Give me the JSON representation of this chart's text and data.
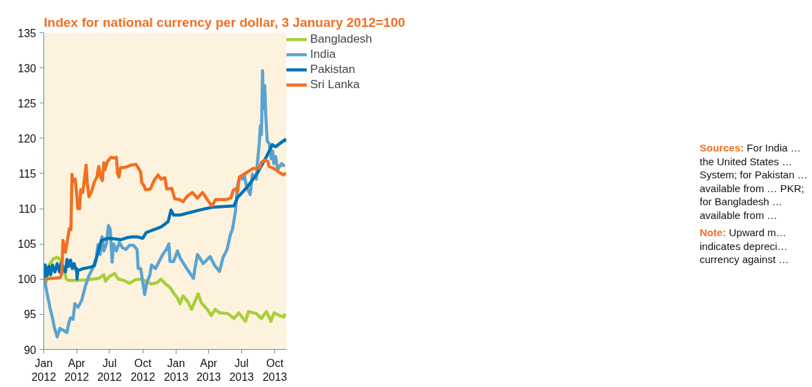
{
  "chart_data": {
    "type": "line",
    "title": "Index for national currency per dollar, 3 January  2012=100",
    "xlim": [
      "2012-01-01",
      "2013-11-02"
    ],
    "xticks": [
      {
        "value": "2012-01-01",
        "label": "Jan\n2012"
      },
      {
        "value": "2012-04-01",
        "label": "Apr\n2012"
      },
      {
        "value": "2012-07-01",
        "label": "Jul\n2012"
      },
      {
        "value": "2012-10-01",
        "label": "Oct\n2012"
      },
      {
        "value": "2013-01-01",
        "label": "Jan\n2013"
      },
      {
        "value": "2013-04-01",
        "label": "Apr\n2013"
      },
      {
        "value": "2013-07-01",
        "label": "Jul\n2013"
      },
      {
        "value": "2013-10-01",
        "label": "Oct\n2013"
      }
    ],
    "ylim": [
      90,
      135
    ],
    "yticks": [
      90,
      95,
      100,
      105,
      110,
      115,
      120,
      125,
      130,
      135
    ],
    "grid": false,
    "legend": "right",
    "marker": "none",
    "line_style": "solid",
    "annotations": [
      "Sources: For India … the United States … System; for Pakistan … available from … PKR; for Bangladesh … available from …",
      "Note: Upward m… indicates depreci… currency against …"
    ],
    "series": [
      {
        "name": "Bangladesh",
        "color": "#a8cf38",
        "x": [
          "2012-01-03",
          "2012-01-08",
          "2012-01-12",
          "2012-01-18",
          "2012-01-28",
          "2012-02-08",
          "2012-02-18",
          "2012-02-25",
          "2012-03-03",
          "2012-03-10",
          "2012-04-01",
          "2012-05-01",
          "2012-06-01",
          "2012-06-15",
          "2012-06-20",
          "2012-07-01",
          "2012-07-15",
          "2012-07-25",
          "2012-08-10",
          "2012-08-25",
          "2012-09-10",
          "2012-09-25",
          "2012-10-10",
          "2012-10-25",
          "2012-11-10",
          "2012-11-20",
          "2012-12-01",
          "2012-12-15",
          "2012-12-28",
          "2013-01-05",
          "2013-01-12",
          "2013-01-20",
          "2013-02-02",
          "2013-02-13",
          "2013-03-03",
          "2013-03-12",
          "2013-03-30",
          "2013-04-08",
          "2013-04-19",
          "2013-05-02",
          "2013-05-24",
          "2013-06-10",
          "2013-06-23",
          "2013-07-12",
          "2013-07-20",
          "2013-08-11",
          "2013-08-25",
          "2013-09-08",
          "2013-09-20",
          "2013-09-29",
          "2013-10-15",
          "2013-10-26",
          "2013-10-29"
        ],
        "values": [
          100,
          99.6,
          101,
          102.2,
          102.9,
          103.1,
          102.6,
          101.5,
          100,
          99.8,
          99.8,
          99.9,
          100.1,
          100.6,
          99.7,
          100.4,
          100.8,
          100,
          99.8,
          99.4,
          99.9,
          100,
          99.7,
          99.3,
          99.5,
          100,
          99.4,
          98.8,
          97.8,
          97.3,
          96.5,
          97.6,
          96.8,
          95.7,
          97.9,
          96.6,
          95.6,
          94.8,
          95.7,
          95.2,
          95.1,
          94.4,
          95.2,
          94,
          95.4,
          95.1,
          94.4,
          95.4,
          94,
          95.2,
          94.8,
          94.6,
          95.1
        ]
      },
      {
        "name": "India",
        "color": "#5aa3d0",
        "x": [
          "2012-01-03",
          "2012-01-10",
          "2012-01-20",
          "2012-01-25",
          "2012-01-30",
          "2012-02-07",
          "2012-02-15",
          "2012-02-25",
          "2012-03-05",
          "2012-03-10",
          "2012-03-15",
          "2012-03-22",
          "2012-03-27",
          "2012-04-05",
          "2012-04-15",
          "2012-04-25",
          "2012-05-05",
          "2012-05-15",
          "2012-05-25",
          "2012-05-30",
          "2012-06-05",
          "2012-06-10",
          "2012-06-15",
          "2012-06-22",
          "2012-06-28",
          "2012-07-03",
          "2012-07-08",
          "2012-07-12",
          "2012-07-20",
          "2012-07-28",
          "2012-08-05",
          "2012-08-15",
          "2012-08-25",
          "2012-09-05",
          "2012-09-15",
          "2012-09-18",
          "2012-09-25",
          "2012-10-01",
          "2012-10-06",
          "2012-10-12",
          "2012-10-20",
          "2012-10-25",
          "2012-11-05",
          "2012-11-15",
          "2012-11-25",
          "2012-12-05",
          "2012-12-12",
          "2012-12-15",
          "2012-12-25",
          "2013-01-05",
          "2013-01-12",
          "2013-01-28",
          "2013-02-18",
          "2013-02-22",
          "2013-03-01",
          "2013-03-17",
          "2013-04-05",
          "2013-04-18",
          "2013-05-01",
          "2013-05-11",
          "2013-05-22",
          "2013-05-31",
          "2013-06-06",
          "2013-06-14",
          "2013-06-20",
          "2013-06-26",
          "2013-07-04",
          "2013-07-08",
          "2013-07-15",
          "2013-07-25",
          "2013-07-31",
          "2013-08-11",
          "2013-08-13",
          "2013-08-19",
          "2013-08-22",
          "2013-08-25",
          "2013-08-28",
          "2013-08-30",
          "2013-09-03",
          "2013-09-06",
          "2013-09-10",
          "2013-09-16",
          "2013-09-21",
          "2013-09-25",
          "2013-09-28",
          "2013-10-03",
          "2013-10-09",
          "2013-10-20",
          "2013-10-28"
        ],
        "values": [
          100,
          98,
          95.5,
          94.5,
          93.2,
          91.8,
          93,
          92.7,
          92.4,
          93.7,
          94.5,
          94.3,
          96.5,
          96,
          97,
          99,
          100.5,
          101.5,
          103,
          104.9,
          103.5,
          106,
          104,
          105,
          107.6,
          107,
          102.4,
          105,
          104,
          105.2,
          104.5,
          104.2,
          104.8,
          104.8,
          104.2,
          101.5,
          101.5,
          99.5,
          97.8,
          99.5,
          100.5,
          102,
          101.5,
          102.5,
          103.5,
          104.2,
          105,
          102.5,
          102.5,
          104,
          103,
          101.7,
          100.1,
          101.5,
          103.5,
          102.2,
          103.2,
          101.9,
          101.1,
          103.1,
          104.2,
          106.3,
          107.1,
          109.6,
          113.4,
          114.5,
          114.2,
          114.9,
          113.1,
          112,
          114.9,
          114.2,
          116,
          119.3,
          121.8,
          120.5,
          129.6,
          124.2,
          127.5,
          123.2,
          119.6,
          119.2,
          117.1,
          118.2,
          116.4,
          117.4,
          115.6,
          116.4,
          116
        ]
      },
      {
        "name": "Pakistan",
        "color": "#0072b5",
        "x": [
          "2012-01-03",
          "2012-01-05",
          "2012-01-10",
          "2012-01-15",
          "2012-01-20",
          "2012-01-25",
          "2012-02-01",
          "2012-02-07",
          "2012-02-14",
          "2012-02-18",
          "2012-02-25",
          "2012-03-01",
          "2012-03-05",
          "2012-03-10",
          "2012-03-15",
          "2012-03-20",
          "2012-03-25",
          "2012-03-30",
          "2012-04-01",
          "2012-04-02",
          "2012-04-04",
          "2012-04-20",
          "2012-05-10",
          "2012-05-20",
          "2012-06-08",
          "2012-06-20",
          "2012-07-01",
          "2012-08-01",
          "2012-08-20",
          "2012-09-01",
          "2012-09-15",
          "2012-10-01",
          "2012-10-10",
          "2012-10-20",
          "2012-11-05",
          "2012-11-20",
          "2012-12-01",
          "2012-12-10",
          "2012-12-18",
          "2012-12-25",
          "2013-01-12",
          "2013-03-06",
          "2013-04-10",
          "2013-06-10",
          "2013-06-20",
          "2013-07-17",
          "2013-08-12",
          "2013-09-08",
          "2013-09-24",
          "2013-10-03",
          "2013-10-29",
          "2013-10-31"
        ],
        "values": [
          100,
          102,
          100.5,
          101.8,
          100.6,
          102,
          101,
          102.2,
          101,
          102.3,
          101.5,
          101,
          102.8,
          101.8,
          102.7,
          101.5,
          102.2,
          101.3,
          101.5,
          100,
          101.2,
          101.5,
          101.7,
          101.9,
          105.5,
          105.7,
          105.8,
          105.6,
          105.9,
          106,
          106,
          105.8,
          106.6,
          106.8,
          107.1,
          107.4,
          107.8,
          108.2,
          109.8,
          109.1,
          109.1,
          109.8,
          110.2,
          110.4,
          111.6,
          113.1,
          114.9,
          117.4,
          119.1,
          118.8,
          119.8,
          119.5
        ]
      },
      {
        "name": "Sri Lanka",
        "color": "#f26f22",
        "x": [
          "2012-01-03",
          "2012-02-15",
          "2012-02-20",
          "2012-02-23",
          "2012-03-01",
          "2012-03-08",
          "2012-03-12",
          "2012-03-16",
          "2012-03-19",
          "2012-03-22",
          "2012-03-28",
          "2012-04-01",
          "2012-04-04",
          "2012-04-09",
          "2012-04-12",
          "2012-04-18",
          "2012-04-22",
          "2012-04-27",
          "2012-04-30",
          "2012-05-05",
          "2012-05-12",
          "2012-05-20",
          "2012-05-27",
          "2012-06-01",
          "2012-06-06",
          "2012-06-11",
          "2012-06-15",
          "2012-06-18",
          "2012-06-25",
          "2012-07-05",
          "2012-07-15",
          "2012-07-20",
          "2012-07-23",
          "2012-07-27",
          "2012-07-31",
          "2012-08-15",
          "2012-08-30",
          "2012-09-12",
          "2012-09-18",
          "2012-09-25",
          "2012-09-28",
          "2012-10-05",
          "2012-10-08",
          "2012-10-22",
          "2012-11-01",
          "2012-11-12",
          "2012-11-20",
          "2012-12-01",
          "2012-12-06",
          "2012-12-20",
          "2012-12-28",
          "2013-01-10",
          "2013-01-20",
          "2013-02-01",
          "2013-02-15",
          "2013-03-01",
          "2013-03-15",
          "2013-04-01",
          "2013-04-10",
          "2013-04-20",
          "2013-05-01",
          "2013-05-20",
          "2013-06-01",
          "2013-06-08",
          "2013-06-14",
          "2013-06-20",
          "2013-06-25",
          "2013-07-05",
          "2013-07-20",
          "2013-08-01",
          "2013-08-20",
          "2013-08-25",
          "2013-09-05",
          "2013-09-12",
          "2013-09-15",
          "2013-09-25",
          "2013-10-05",
          "2013-10-15",
          "2013-10-25",
          "2013-10-31"
        ],
        "values": [
          100,
          100.2,
          100.8,
          105.5,
          103.8,
          106,
          107.2,
          107,
          114.9,
          113.8,
          114.2,
          112,
          110,
          110,
          112.7,
          112.3,
          114,
          116.2,
          113.8,
          111.7,
          112.4,
          113.8,
          114.5,
          116,
          114.5,
          114,
          116.5,
          115.5,
          116.7,
          117.3,
          117.2,
          117.3,
          115,
          114.5,
          115.8,
          115.9,
          116.2,
          116.3,
          115.8,
          115.2,
          113.7,
          113.2,
          112.7,
          112.8,
          114,
          114.8,
          114.2,
          114.4,
          112.8,
          112.9,
          111.4,
          111.3,
          111,
          111.8,
          112.3,
          111.5,
          112.3,
          111,
          110.4,
          111.3,
          111.3,
          111.3,
          111.5,
          112.6,
          112.8,
          112.4,
          114.5,
          114.8,
          115.3,
          115.7,
          115.8,
          116.6,
          116.9,
          116.7,
          116,
          115.8,
          115.5,
          115.1,
          114.8,
          115.1
        ]
      }
    ]
  }
}
